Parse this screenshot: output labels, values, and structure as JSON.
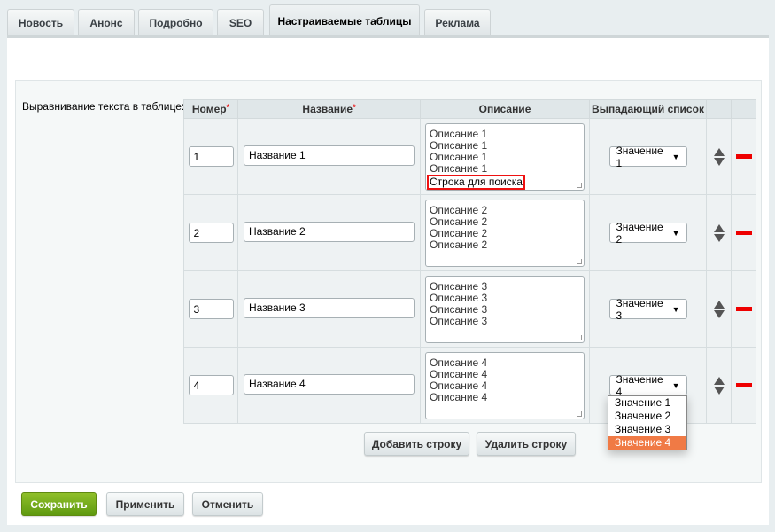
{
  "tabs": [
    {
      "label": "Новость"
    },
    {
      "label": "Анонс"
    },
    {
      "label": "Подробно"
    },
    {
      "label": "SEO"
    },
    {
      "label": "Настраиваемые таблицы",
      "active": true
    },
    {
      "label": "Реклама"
    }
  ],
  "field_label": "Выравнивание текста в таблице:",
  "table": {
    "headers": {
      "number": "Номер",
      "name": "Название",
      "description": "Описание",
      "dropdown": "Выпадающий список"
    },
    "required_mark": "*",
    "rows": [
      {
        "number": "1",
        "name": "Название 1",
        "description": [
          "Описание 1",
          "Описание 1",
          "Описание 1",
          "Описание 1"
        ],
        "highlight": "Строка для поиска",
        "select": "Значение 1"
      },
      {
        "number": "2",
        "name": "Название 2",
        "description": [
          "Описание 2",
          "Описание 2",
          "Описание 2",
          "Описание 2"
        ],
        "select": "Значение 2"
      },
      {
        "number": "3",
        "name": "Название 3",
        "description": [
          "Описание 3",
          "Описание 3",
          "Описание 3",
          "Описание 3"
        ],
        "select": "Значение 3"
      },
      {
        "number": "4",
        "name": "Название 4",
        "description": [
          "Описание 4",
          "Описание 4",
          "Описание 4",
          "Описание 4"
        ],
        "select": "Значение 4"
      }
    ]
  },
  "dropdown_open": {
    "options": [
      "Значение 1",
      "Значение 2",
      "Значение 3",
      "Значение 4"
    ],
    "selected": "Значение 4",
    "highlight_color": "#f07a45"
  },
  "buttons": {
    "add_row": "Добавить строку",
    "delete_row": "Удалить строку",
    "save": "Сохранить",
    "apply": "Применить",
    "cancel": "Отменить"
  },
  "colors": {
    "save": "#6fa81a",
    "delete_marker": "#ee0000",
    "highlight_border": "#e11111"
  }
}
